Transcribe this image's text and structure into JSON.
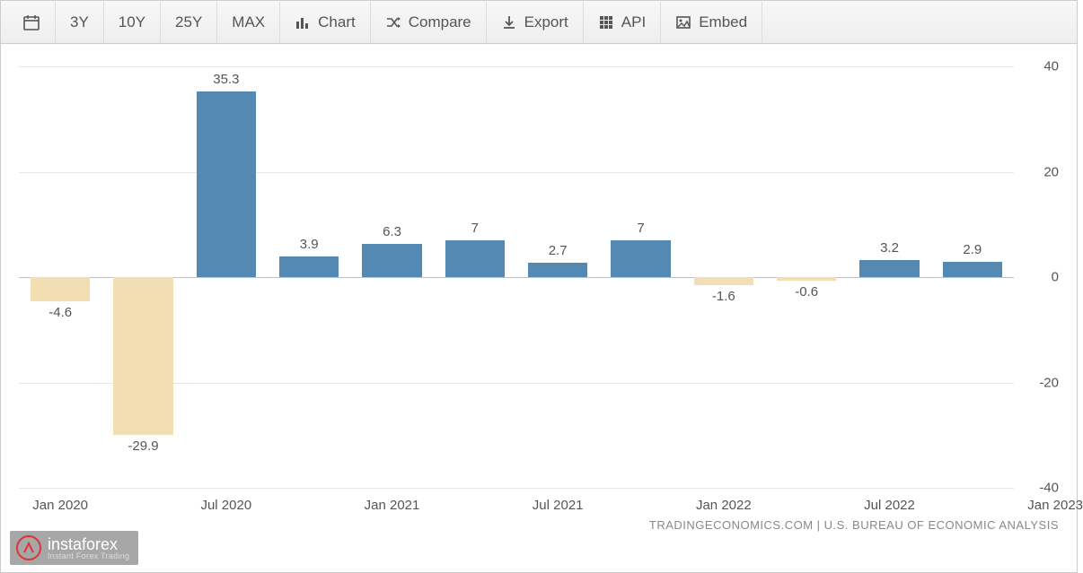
{
  "toolbar": {
    "calendar_icon": "calendar",
    "ranges": [
      "3Y",
      "10Y",
      "25Y",
      "MAX"
    ],
    "actions": [
      {
        "icon": "bar-chart-icon",
        "label": "Chart"
      },
      {
        "icon": "shuffle-icon",
        "label": "Compare"
      },
      {
        "icon": "download-icon",
        "label": "Export"
      },
      {
        "icon": "grid-icon",
        "label": "API"
      },
      {
        "icon": "image-icon",
        "label": "Embed"
      }
    ]
  },
  "chart": {
    "type": "bar",
    "ylim": [
      -40,
      40
    ],
    "ytick_step": 20,
    "yticks": [
      -40,
      -20,
      0,
      20,
      40
    ],
    "xticks": [
      "Jan 2020",
      "Jul 2020",
      "Jan 2021",
      "Jul 2021",
      "Jan 2022",
      "Jul 2022",
      "Jan 2023"
    ],
    "bars": [
      {
        "value": -4.6,
        "label": "-4.6"
      },
      {
        "value": -29.9,
        "label": "-29.9"
      },
      {
        "value": 35.3,
        "label": "35.3"
      },
      {
        "value": 3.9,
        "label": "3.9"
      },
      {
        "value": 6.3,
        "label": "6.3"
      },
      {
        "value": 7,
        "label": "7"
      },
      {
        "value": 2.7,
        "label": "2.7"
      },
      {
        "value": 7,
        "label": "7"
      },
      {
        "value": -1.6,
        "label": "-1.6"
      },
      {
        "value": -0.6,
        "label": "-0.6"
      },
      {
        "value": 3.2,
        "label": "3.2"
      },
      {
        "value": 2.9,
        "label": "2.9"
      }
    ],
    "bar_fill_pos": "#5389b3",
    "bar_fill_neg": "#f2deb3",
    "bar_width_ratio": 0.72,
    "grid_color": "#e6e6e6",
    "baseline_color": "#c0c0c0",
    "label_fontsize": 15,
    "tick_fontsize": 15,
    "tick_color": "#555555",
    "background_color": "#ffffff",
    "xtick_every_bars": 2
  },
  "source_text": "TRADINGECONOMICS.COM | U.S. BUREAU OF ECONOMIC ANALYSIS",
  "watermark": {
    "brand_main": "instaforex",
    "brand_sub": "Instant Forex Trading"
  }
}
